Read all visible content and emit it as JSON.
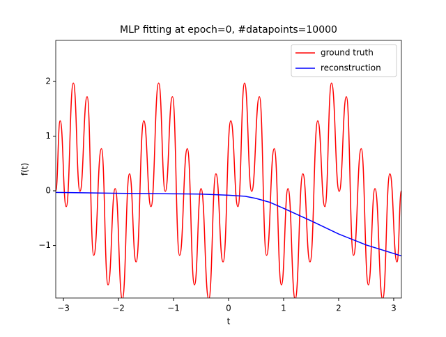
{
  "chart_data": {
    "type": "line",
    "title": "MLP fitting at epoch=0, #datapoints=10000",
    "xlabel": "t",
    "ylabel": "f(t)",
    "xlim": [
      -3.14,
      3.14
    ],
    "ylim": [
      -1.96,
      2.75
    ],
    "xticks": [
      {
        "value": -3,
        "label": "−3"
      },
      {
        "value": -2,
        "label": "−2"
      },
      {
        "value": -1,
        "label": "−1"
      },
      0,
      1,
      2,
      3
    ],
    "yticks": [
      {
        "value": -1,
        "label": "−1"
      },
      0,
      1,
      2
    ],
    "legend": "upper right",
    "series": [
      {
        "name": "ground truth",
        "color": "#ff0000",
        "x": [
          -3.14,
          -3.06,
          -2.95,
          -2.82,
          -2.7,
          -2.57,
          -2.45,
          -2.31,
          -2.19,
          -2.06,
          -1.93,
          -1.8,
          -1.68,
          -1.54,
          -1.41,
          -1.27,
          -1.15,
          -1.02,
          -0.89,
          -0.75,
          -0.62,
          -0.5,
          -0.36,
          -0.23,
          -0.1,
          0.04,
          0.17,
          0.29,
          0.42,
          0.56,
          0.69,
          0.83,
          0.96,
          1.08,
          1.21,
          1.35,
          1.48,
          1.62,
          1.75,
          1.87,
          2.01,
          2.14,
          2.27,
          2.41,
          2.54,
          2.66,
          2.8,
          2.93,
          3.06,
          3.14
        ],
        "values": [
          0,
          1.28,
          -0.29,
          1.97,
          -0.01,
          1.72,
          -1.18,
          0.77,
          -1.72,
          0.04,
          -1.98,
          0.31,
          -1.3,
          1.28,
          -0.29,
          1.97,
          -0.01,
          1.72,
          -1.18,
          0.77,
          -1.72,
          0.04,
          -1.98,
          0.31,
          -1.3,
          1.28,
          -0.29,
          1.97,
          -0.01,
          1.72,
          -1.18,
          0.77,
          -1.72,
          0.04,
          -1.98,
          0.31,
          -1.3,
          1.28,
          -0.29,
          1.97,
          -0.01,
          1.72,
          -1.18,
          0.77,
          -1.72,
          0.04,
          -1.98,
          0.31,
          -1.3,
          0
        ]
      },
      {
        "name": "reconstruction",
        "color": "#0000ff",
        "x": [
          -3.14,
          -2,
          -1,
          -0.5,
          0,
          0.3,
          0.5,
          0.75,
          1,
          1.5,
          2,
          2.5,
          3.14
        ],
        "values": [
          -0.03,
          -0.045,
          -0.055,
          -0.06,
          -0.08,
          -0.1,
          -0.14,
          -0.21,
          -0.32,
          -0.55,
          -0.79,
          -0.99,
          -1.19
        ]
      }
    ]
  }
}
